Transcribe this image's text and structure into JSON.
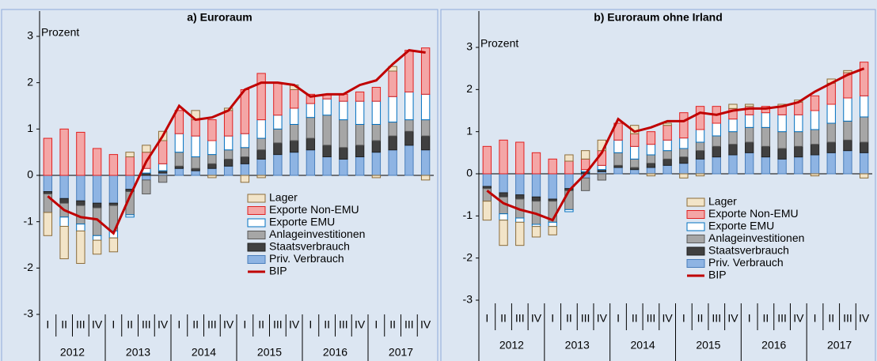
{
  "chart_data": [
    {
      "type": "stacked-bar-line",
      "title": "a) Euroraum",
      "y_label": "Prozent",
      "categories": [
        "I",
        "II",
        "III",
        "IV",
        "I",
        "II",
        "III",
        "IV",
        "I",
        "II",
        "III",
        "IV",
        "I",
        "II",
        "III",
        "IV",
        "I",
        "II",
        "III",
        "IV",
        "I",
        "II",
        "III",
        "IV"
      ],
      "years": [
        "2012",
        "2013",
        "2014",
        "2015",
        "2016",
        "2017"
      ],
      "ylim": [
        -3,
        3
      ],
      "yticks": [
        -3,
        -2,
        -1,
        0,
        1,
        2,
        3
      ],
      "series": [
        {
          "name": "Priv. Verbrauch",
          "color": "#8eb4e3",
          "values": [
            -0.35,
            -0.5,
            -0.55,
            -0.6,
            -0.6,
            -0.3,
            -0.1,
            0.05,
            0.15,
            0.1,
            0.15,
            0.2,
            0.25,
            0.35,
            0.45,
            0.5,
            0.55,
            0.4,
            0.35,
            0.4,
            0.5,
            0.55,
            0.65,
            0.55
          ]
        },
        {
          "name": "Staatsverbrauch",
          "color": "#404040",
          "values": [
            -0.05,
            -0.1,
            -0.1,
            -0.1,
            -0.05,
            -0.05,
            0.05,
            0.05,
            0.05,
            0.05,
            0.1,
            0.15,
            0.15,
            0.2,
            0.25,
            0.25,
            0.25,
            0.25,
            0.25,
            0.25,
            0.25,
            0.3,
            0.3,
            0.3
          ]
        },
        {
          "name": "Anlageinvestitionen",
          "color": "#a6a6a6",
          "values": [
            -0.4,
            -0.3,
            -0.4,
            -0.6,
            -0.55,
            -0.5,
            -0.3,
            -0.15,
            0.3,
            0.25,
            0.2,
            0.2,
            0.2,
            0.25,
            0.3,
            0.35,
            0.45,
            0.65,
            0.6,
            0.45,
            0.35,
            0.3,
            0.25,
            0.35
          ]
        },
        {
          "name": "Exporte EMU",
          "color": "#ffffff",
          "values": [
            0,
            -0.2,
            -0.15,
            -0.1,
            -0.15,
            -0.05,
            0.1,
            0.15,
            0.4,
            0.45,
            0.3,
            0.3,
            0.3,
            0.4,
            0.3,
            0.35,
            0.3,
            0.35,
            0.4,
            0.5,
            0.5,
            0.55,
            0.6,
            0.55
          ]
        },
        {
          "name": "Exporte Non-EMU",
          "color": "#f4a6a6",
          "values": [
            0.8,
            1.0,
            0.93,
            0.58,
            0.45,
            0.4,
            0.35,
            0.5,
            0.5,
            0.35,
            0.45,
            0.55,
            0.95,
            1.0,
            0.7,
            0.4,
            0.2,
            0.1,
            0.15,
            0.2,
            0.3,
            0.55,
            0.9,
            1.0
          ]
        },
        {
          "name": "Lager",
          "color": "#f2e4c8",
          "values": [
            -0.5,
            -0.7,
            -0.7,
            -0.3,
            -0.3,
            0.1,
            0.15,
            0.2,
            0.0,
            0.2,
            -0.05,
            0.05,
            -0.15,
            -0.05,
            0.0,
            0.1,
            0.0,
            0.0,
            0.0,
            0.0,
            -0.05,
            0.1,
            0.0,
            -0.1
          ]
        }
      ],
      "line": {
        "name": "BIP",
        "color": "#c00000",
        "values": [
          -0.45,
          -0.75,
          -0.9,
          -0.95,
          -1.25,
          -0.45,
          0.3,
          0.85,
          1.5,
          1.2,
          1.25,
          1.4,
          1.85,
          2.0,
          2.0,
          1.95,
          1.7,
          1.75,
          1.75,
          1.95,
          2.05,
          2.4,
          2.7,
          2.65
        ]
      }
    },
    {
      "type": "stacked-bar-line",
      "title": "b) Euroraum  ohne  Irland",
      "y_label": "Prozent",
      "categories": [
        "I",
        "II",
        "III",
        "IV",
        "I",
        "II",
        "III",
        "IV",
        "I",
        "II",
        "III",
        "IV",
        "I",
        "II",
        "III",
        "IV",
        "I",
        "II",
        "III",
        "IV",
        "I",
        "II",
        "III",
        "IV"
      ],
      "years": [
        "2012",
        "2013",
        "2014",
        "2015",
        "2016",
        "2017"
      ],
      "ylim": [
        -3,
        3
      ],
      "yticks": [
        -3,
        -2,
        -1,
        0,
        1,
        2,
        3
      ],
      "series": [
        {
          "name": "Priv. Verbrauch",
          "color": "#8eb4e3",
          "values": [
            -0.3,
            -0.45,
            -0.5,
            -0.55,
            -0.6,
            -0.35,
            -0.1,
            0.05,
            0.15,
            0.1,
            0.15,
            0.2,
            0.25,
            0.35,
            0.4,
            0.45,
            0.5,
            0.4,
            0.35,
            0.4,
            0.45,
            0.5,
            0.55,
            0.5
          ]
        },
        {
          "name": "Staatsverbrauch",
          "color": "#404040",
          "values": [
            -0.05,
            -0.1,
            -0.1,
            -0.1,
            -0.05,
            -0.05,
            0.05,
            0.05,
            0.05,
            0.05,
            0.1,
            0.15,
            0.15,
            0.2,
            0.25,
            0.25,
            0.25,
            0.25,
            0.25,
            0.25,
            0.25,
            0.25,
            0.25,
            0.25
          ]
        },
        {
          "name": "Anlageinvestitionen",
          "color": "#a6a6a6",
          "values": [
            -0.3,
            -0.4,
            -0.45,
            -0.55,
            -0.5,
            -0.45,
            -0.3,
            -0.15,
            0.3,
            0.2,
            0.2,
            0.2,
            0.2,
            0.2,
            0.25,
            0.3,
            0.35,
            0.45,
            0.4,
            0.35,
            0.35,
            0.45,
            0.45,
            0.6
          ]
        },
        {
          "name": "Exporte EMU",
          "color": "#ffffff",
          "values": [
            0,
            -0.15,
            -0.1,
            -0.05,
            -0.1,
            -0.05,
            0.05,
            0.1,
            0.3,
            0.3,
            0.25,
            0.25,
            0.25,
            0.3,
            0.3,
            0.3,
            0.3,
            0.35,
            0.4,
            0.4,
            0.45,
            0.45,
            0.55,
            0.5
          ]
        },
        {
          "name": "Exporte Non-EMU",
          "color": "#f4a6a6",
          "values": [
            0.65,
            0.8,
            0.75,
            0.5,
            0.35,
            0.3,
            0.25,
            0.35,
            0.4,
            0.3,
            0.3,
            0.35,
            0.6,
            0.55,
            0.4,
            0.25,
            0.2,
            0.15,
            0.2,
            0.3,
            0.35,
            0.5,
            0.6,
            0.8
          ]
        },
        {
          "name": "Lager",
          "color": "#f2e4c8",
          "values": [
            -0.45,
            -0.6,
            -0.55,
            -0.25,
            -0.2,
            0.15,
            0.2,
            0.25,
            0.0,
            0.2,
            -0.05,
            0.05,
            -0.1,
            -0.05,
            0.0,
            0.1,
            0.05,
            0.0,
            0.05,
            0.05,
            -0.05,
            0.1,
            0.05,
            -0.1
          ]
        }
      ],
      "line": {
        "name": "BIP",
        "color": "#c00000",
        "values": [
          -0.4,
          -0.7,
          -0.85,
          -0.95,
          -1.1,
          -0.4,
          0.0,
          0.5,
          1.3,
          1.0,
          1.1,
          1.25,
          1.25,
          1.45,
          1.4,
          1.5,
          1.55,
          1.55,
          1.6,
          1.7,
          1.95,
          2.15,
          2.35,
          2.5
        ]
      }
    }
  ]
}
